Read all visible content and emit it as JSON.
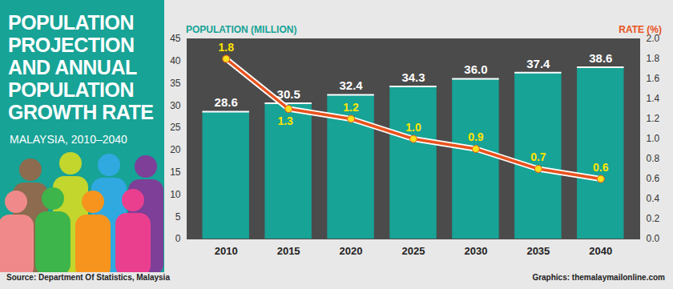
{
  "chart_data": {
    "type": "bar",
    "title": "POPULATION PROJECTION AND ANNUAL POPULATION GROWTH RATE",
    "subtitle": "MALAYSIA, 2010–2040",
    "source": "Source: Department Of Statistics, Malaysia",
    "credit": "Graphics: themalaymailonline.com",
    "categories": [
      "2010",
      "2015",
      "2020",
      "2025",
      "2030",
      "2035",
      "2040"
    ],
    "series": [
      {
        "name": "POPULATION (MILLION)",
        "type": "bar",
        "color": "#17a396",
        "values": [
          28.6,
          30.5,
          32.4,
          34.3,
          36.0,
          37.4,
          38.6
        ],
        "value_labels": [
          "28.6",
          "30.5",
          "32.4",
          "34.3",
          "36.0",
          "37.4",
          "38.6"
        ]
      },
      {
        "name": "RATE (%)",
        "type": "line",
        "axis": "y2",
        "color": "#e8531d",
        "marker": "circle",
        "line_style": "solid",
        "values": [
          1.8,
          1.3,
          1.2,
          1.0,
          0.9,
          0.7,
          0.6
        ],
        "value_labels": [
          "1.8",
          "1.3",
          "1.2",
          "1.0",
          "0.9",
          "0.7",
          "0.6"
        ]
      }
    ],
    "ylim": [
      0,
      45
    ],
    "yticks": [
      0,
      5,
      10,
      15,
      20,
      25,
      30,
      35,
      40,
      45
    ],
    "y2lim": [
      0,
      2
    ],
    "y2ticks": [
      {
        "value": 0,
        "label": "0.0"
      },
      0.2,
      0.4,
      0.6,
      0.8,
      {
        "value": 1,
        "label": "1.0"
      },
      1.2,
      1.4,
      1.6,
      1.8,
      {
        "value": 2,
        "label": "2.0"
      }
    ],
    "grid": false,
    "data_labels": true
  }
}
